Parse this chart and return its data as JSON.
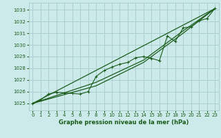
{
  "title": "Graphe pression niveau de la mer (hPa)",
  "bg_color": "#cceaea",
  "grid_color": "#aacece",
  "line_color": "#1a5c1a",
  "xlim": [
    -0.5,
    23.5
  ],
  "ylim": [
    1024.4,
    1033.6
  ],
  "xticks": [
    0,
    1,
    2,
    3,
    4,
    5,
    6,
    7,
    8,
    9,
    10,
    11,
    12,
    13,
    14,
    15,
    16,
    17,
    18,
    19,
    20,
    21,
    22,
    23
  ],
  "yticks": [
    1025,
    1026,
    1027,
    1028,
    1029,
    1030,
    1031,
    1032,
    1033
  ],
  "main_line": [
    [
      0,
      1025.0
    ],
    [
      1,
      1025.3
    ],
    [
      2,
      1025.8
    ],
    [
      3,
      1025.95
    ],
    [
      4,
      1025.9
    ],
    [
      5,
      1025.85
    ],
    [
      6,
      1025.8
    ],
    [
      7,
      1026.0
    ],
    [
      8,
      1027.3
    ],
    [
      9,
      1027.8
    ],
    [
      10,
      1028.1
    ],
    [
      11,
      1028.35
    ],
    [
      12,
      1028.5
    ],
    [
      13,
      1028.9
    ],
    [
      14,
      1029.0
    ],
    [
      15,
      1028.85
    ],
    [
      16,
      1028.65
    ],
    [
      17,
      1030.75
    ],
    [
      18,
      1030.3
    ],
    [
      19,
      1031.45
    ],
    [
      20,
      1031.55
    ],
    [
      21,
      1032.05
    ],
    [
      22,
      1032.25
    ],
    [
      23,
      1033.1
    ]
  ],
  "upper_line": [
    [
      0,
      1025.0
    ],
    [
      23,
      1033.1
    ]
  ],
  "lower_line": [
    [
      0,
      1025.0
    ],
    [
      8,
      1026.5
    ],
    [
      14,
      1028.5
    ],
    [
      19,
      1031.0
    ],
    [
      23,
      1033.1
    ]
  ],
  "mid_line": [
    [
      0,
      1025.0
    ],
    [
      8,
      1026.8
    ],
    [
      14,
      1028.7
    ],
    [
      19,
      1031.2
    ],
    [
      23,
      1033.1
    ]
  ]
}
